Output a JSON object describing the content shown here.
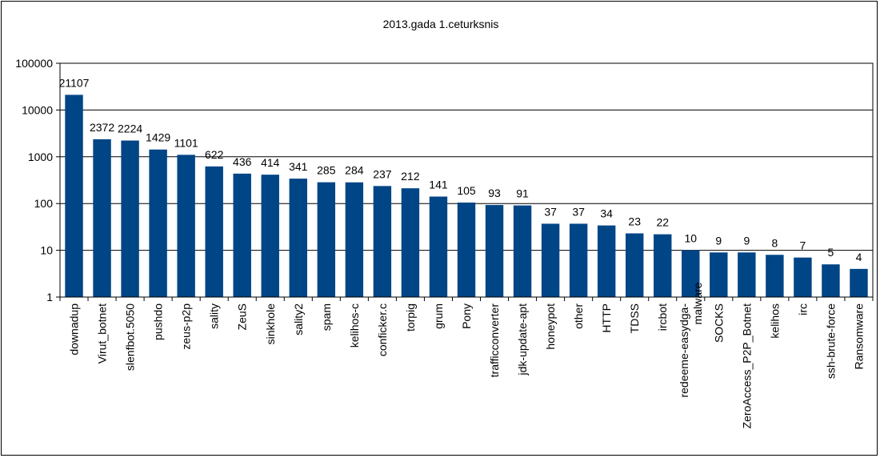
{
  "chart_data": {
    "type": "bar",
    "title": "2013.gada 1.ceturksnis",
    "xlabel": "",
    "ylabel": "",
    "scale": "log",
    "ylim": [
      1,
      100000
    ],
    "yticks": [
      "1",
      "10",
      "100",
      "1000",
      "10000",
      "100000"
    ],
    "grid": true,
    "legend": "none",
    "bar_color": "#004586",
    "categories": [
      "downadup",
      "Virut_botnet",
      "slenfbot.5050",
      "pushdo",
      "zeus-p2p",
      "sality",
      "ZeuS",
      "sinkhole",
      "sality2",
      "spam",
      "kelihos-c",
      "conficker.c",
      "torpig",
      "grum",
      "Pony",
      "trafficconverter",
      "jdk-update-apt",
      "honeypot",
      "other",
      "HTTP",
      "TDSS",
      "ircbot",
      "redeeme-easydga-malware",
      "SOCKS",
      "ZeroAccess_P2P_Botnet",
      "kelihos",
      "irc",
      "ssh-brute-force",
      "Ransomware"
    ],
    "values": [
      21107,
      2372,
      2224,
      1429,
      1101,
      622,
      436,
      414,
      341,
      285,
      284,
      237,
      212,
      141,
      105,
      93,
      91,
      37,
      37,
      34,
      23,
      22,
      10,
      9,
      9,
      8,
      7,
      5,
      4
    ],
    "data_labels": [
      "21107",
      "2372",
      "2224",
      "1429",
      "1101",
      "622",
      "436",
      "414",
      "341",
      "285",
      "284",
      "237",
      "212",
      "141",
      "105",
      "93",
      "91",
      "37",
      "37",
      "34",
      "23",
      "22",
      "10",
      "9",
      "9",
      "8",
      "7",
      "5",
      "4"
    ]
  }
}
